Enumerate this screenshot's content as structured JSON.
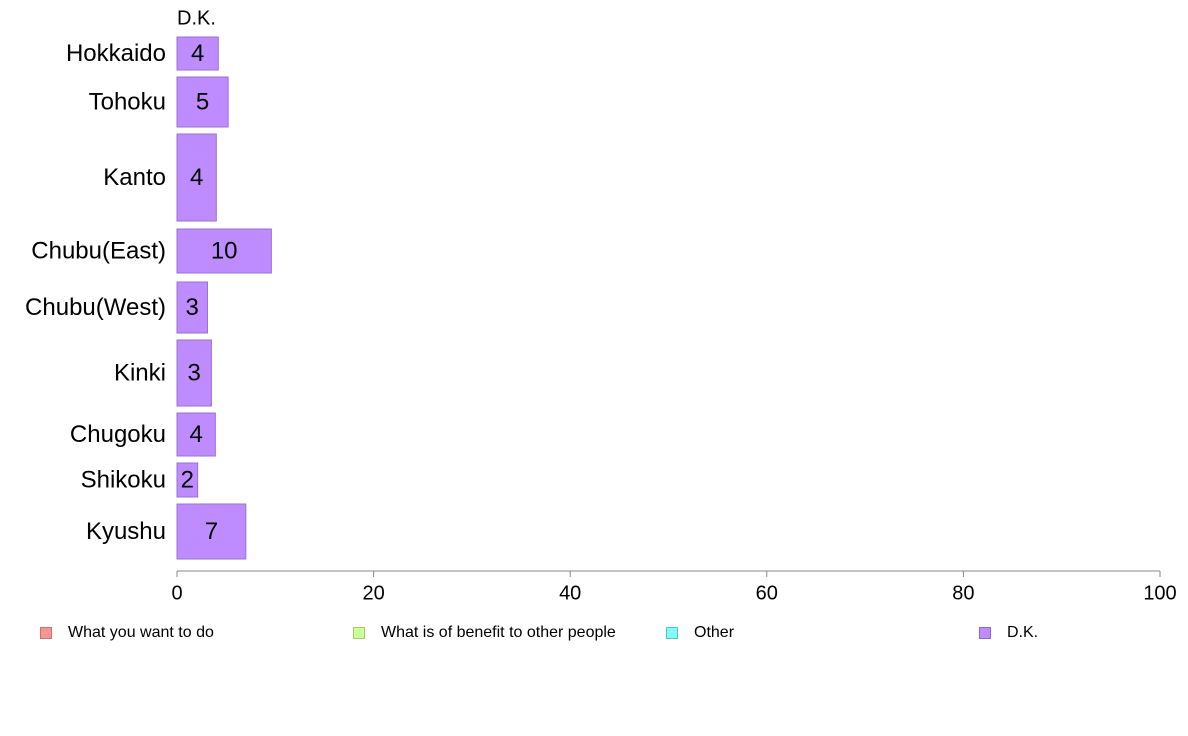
{
  "chart_data": {
    "type": "bar",
    "orientation": "horizontal",
    "stacked": true,
    "series_header": "D.K.",
    "categories": [
      "Hokkaido",
      "Tohoku",
      "Kanto",
      "Chubu(East)",
      "Chubu(West)",
      "Kinki",
      "Chugoku",
      "Shikoku",
      "Kyushu"
    ],
    "series": [
      {
        "name": "What you want to do",
        "color": "#f99494",
        "values": [
          null,
          null,
          null,
          null,
          null,
          null,
          null,
          null,
          null
        ]
      },
      {
        "name": "What is of benefit to other people",
        "color": "#ccff99",
        "values": [
          null,
          null,
          null,
          null,
          null,
          null,
          null,
          null,
          null
        ]
      },
      {
        "name": "Other",
        "color": "#7ffafa",
        "values": [
          null,
          null,
          null,
          null,
          null,
          null,
          null,
          null,
          null
        ]
      },
      {
        "name": "D.K.",
        "color": "#bf8cff",
        "values": [
          4.2,
          5.2,
          4.0,
          9.6,
          3.1,
          3.5,
          3.9,
          2.1,
          7.0
        ]
      }
    ],
    "data_labels": [
      "4",
      "5",
      "4",
      "10",
      "3",
      "3",
      "4",
      "2",
      "7"
    ],
    "xlim": [
      0,
      100
    ],
    "xticks": [
      "0",
      "20",
      "40",
      "60",
      "80",
      "100"
    ],
    "grid": false,
    "legend_position": "bottom"
  }
}
